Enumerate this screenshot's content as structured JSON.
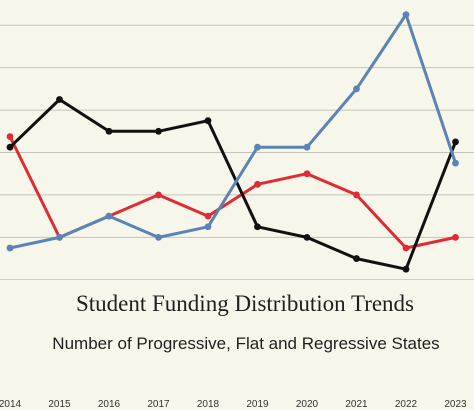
{
  "chart_data": {
    "type": "line",
    "title": "Student Funding Distribution Trends",
    "subtitle": "Number of Progressive, Flat and Regressive States",
    "x": [
      "2014",
      "2015",
      "2016",
      "2017",
      "2018",
      "2019",
      "2020",
      "2021",
      "2022",
      "2023"
    ],
    "series": [
      {
        "color": "#e02b35",
        "values": [
          19.5,
          10,
          12,
          14,
          12,
          15,
          16,
          14,
          9,
          10
        ]
      },
      {
        "color": "#111111",
        "values": [
          18.5,
          23,
          20,
          20,
          21,
          11,
          10,
          8,
          7,
          19
        ]
      },
      {
        "color": "#5b83b5",
        "values": [
          9,
          10,
          12,
          10,
          11,
          18.5,
          18.5,
          24,
          31,
          17
        ]
      }
    ],
    "ylim": [
      4,
      32
    ],
    "grid": true,
    "legend": "none"
  }
}
